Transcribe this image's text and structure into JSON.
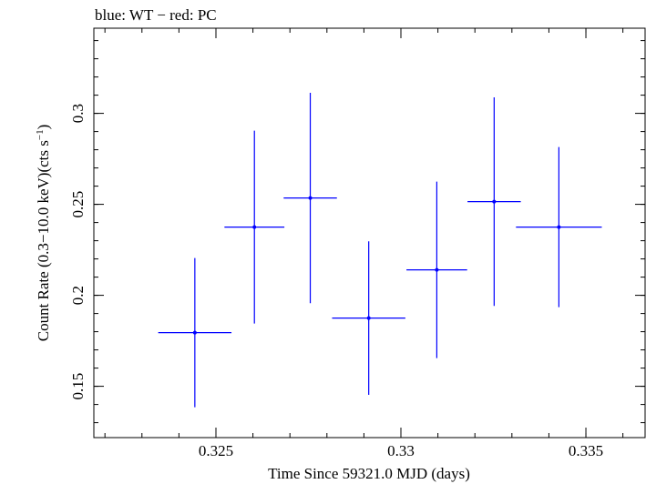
{
  "header": {
    "title": "blue: WT − red: PC"
  },
  "chart_data": {
    "type": "scatter",
    "title": "blue: WT − red: PC",
    "xlabel": "Time Since 59321.0 MJD (days)",
    "ylabel_main": "Count Rate (0.3−10.0 keV)(cts s",
    "ylabel_sup": "−1",
    "ylabel_close": ")",
    "xlim": [
      0.3217,
      0.3366
    ],
    "ylim": [
      0.1218,
      0.3468
    ],
    "x_ticks": [
      {
        "value": 0.325,
        "label": "0.325"
      },
      {
        "value": 0.33,
        "label": "0.33"
      },
      {
        "value": 0.335,
        "label": "0.335"
      }
    ],
    "y_ticks": [
      {
        "value": 0.15,
        "label": "0.15"
      },
      {
        "value": 0.2,
        "label": "0.2"
      },
      {
        "value": 0.25,
        "label": "0.25"
      },
      {
        "value": 0.3,
        "label": "0.3"
      }
    ],
    "x_minor_step": 0.001,
    "y_minor_step": 0.01,
    "grid": false,
    "colors": {
      "WT": "#0000ff",
      "PC": "#ff0000"
    },
    "series": [
      {
        "name": "WT",
        "color": "#0000ff",
        "points": [
          {
            "x": 0.32443,
            "xerr": 0.00099,
            "y": 0.1795,
            "yerr": 0.041
          },
          {
            "x": 0.32604,
            "xerr": 0.00081,
            "y": 0.2375,
            "yerr": 0.053
          },
          {
            "x": 0.32755,
            "xerr": 0.00072,
            "y": 0.2535,
            "yerr": 0.0578
          },
          {
            "x": 0.32913,
            "xerr": 0.00099,
            "y": 0.1875,
            "yerr": 0.0422
          },
          {
            "x": 0.33097,
            "xerr": 0.00082,
            "y": 0.214,
            "yerr": 0.0485
          },
          {
            "x": 0.33252,
            "xerr": 0.00072,
            "y": 0.2515,
            "yerr": 0.0573
          },
          {
            "x": 0.33427,
            "xerr": 0.00116,
            "y": 0.2375,
            "yerr": 0.044
          }
        ]
      }
    ]
  }
}
